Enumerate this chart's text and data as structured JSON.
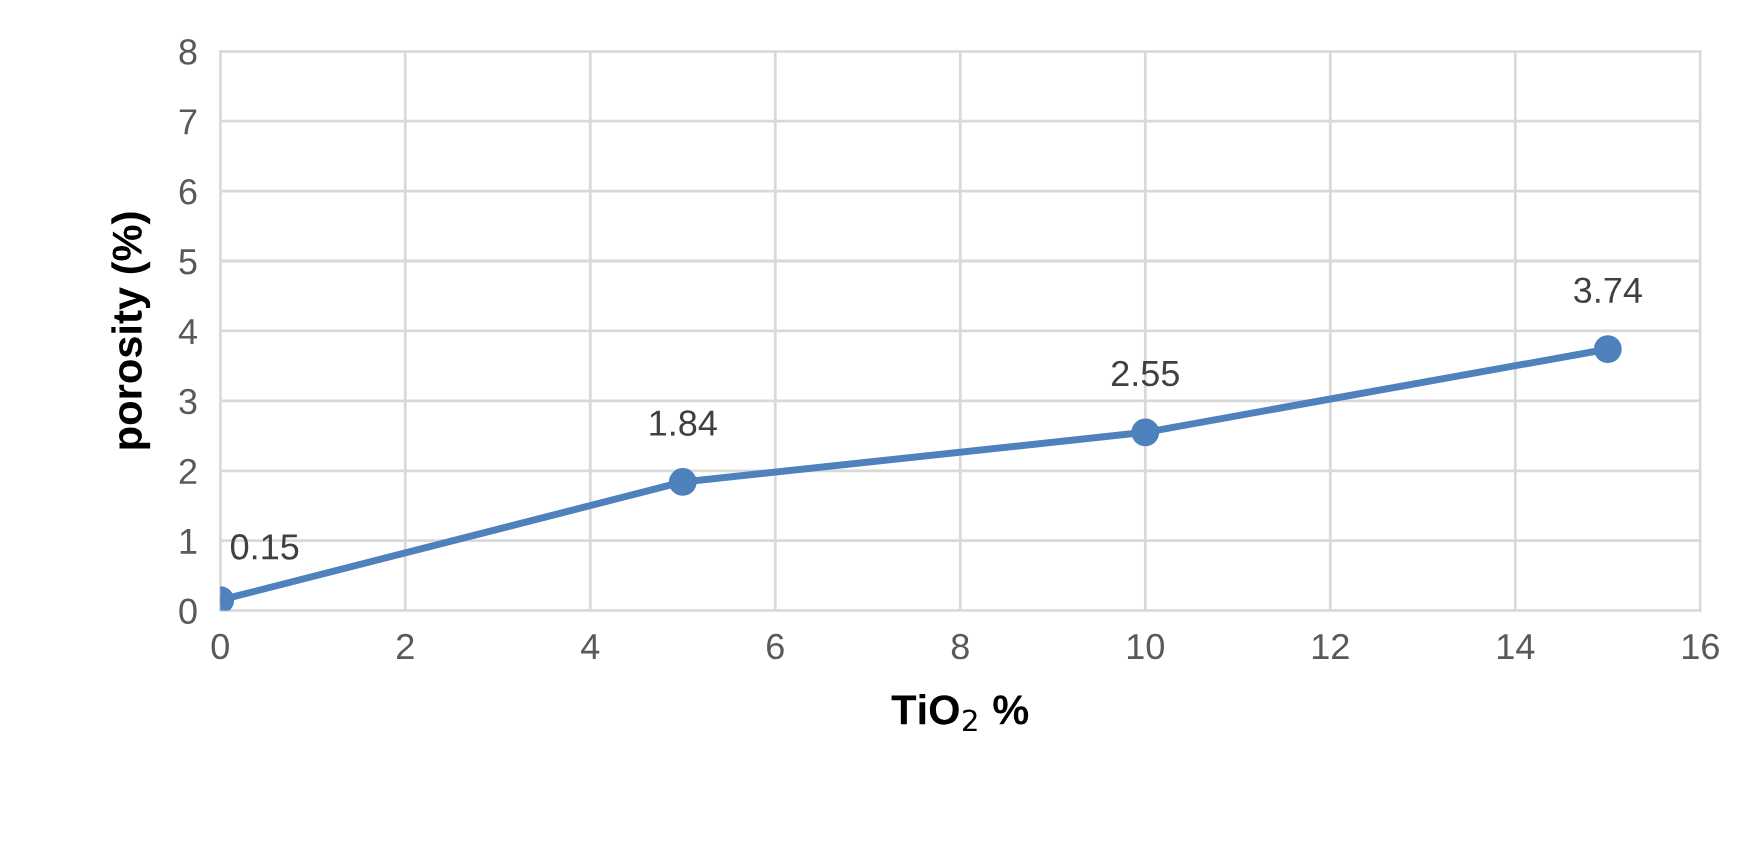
{
  "chart_data": {
    "type": "line",
    "xlabel": "TiO$_{2}$ %",
    "ylabel": "porosity (%)",
    "x": [
      0,
      5,
      10,
      15
    ],
    "series": [
      {
        "color": "#4f81bd",
        "values": [
          0.15,
          1.84,
          2.55,
          3.74
        ]
      }
    ],
    "xlim": [
      0,
      16
    ],
    "xticks": [
      0,
      2,
      4,
      6,
      8,
      10,
      12,
      14,
      16
    ],
    "ylim": [
      0,
      8
    ],
    "yticks": [
      0,
      1,
      2,
      3,
      4,
      5,
      6,
      7,
      8
    ],
    "grid": true,
    "marker": "circle",
    "line_style": "solid",
    "data_labels": true,
    "legend": false
  }
}
